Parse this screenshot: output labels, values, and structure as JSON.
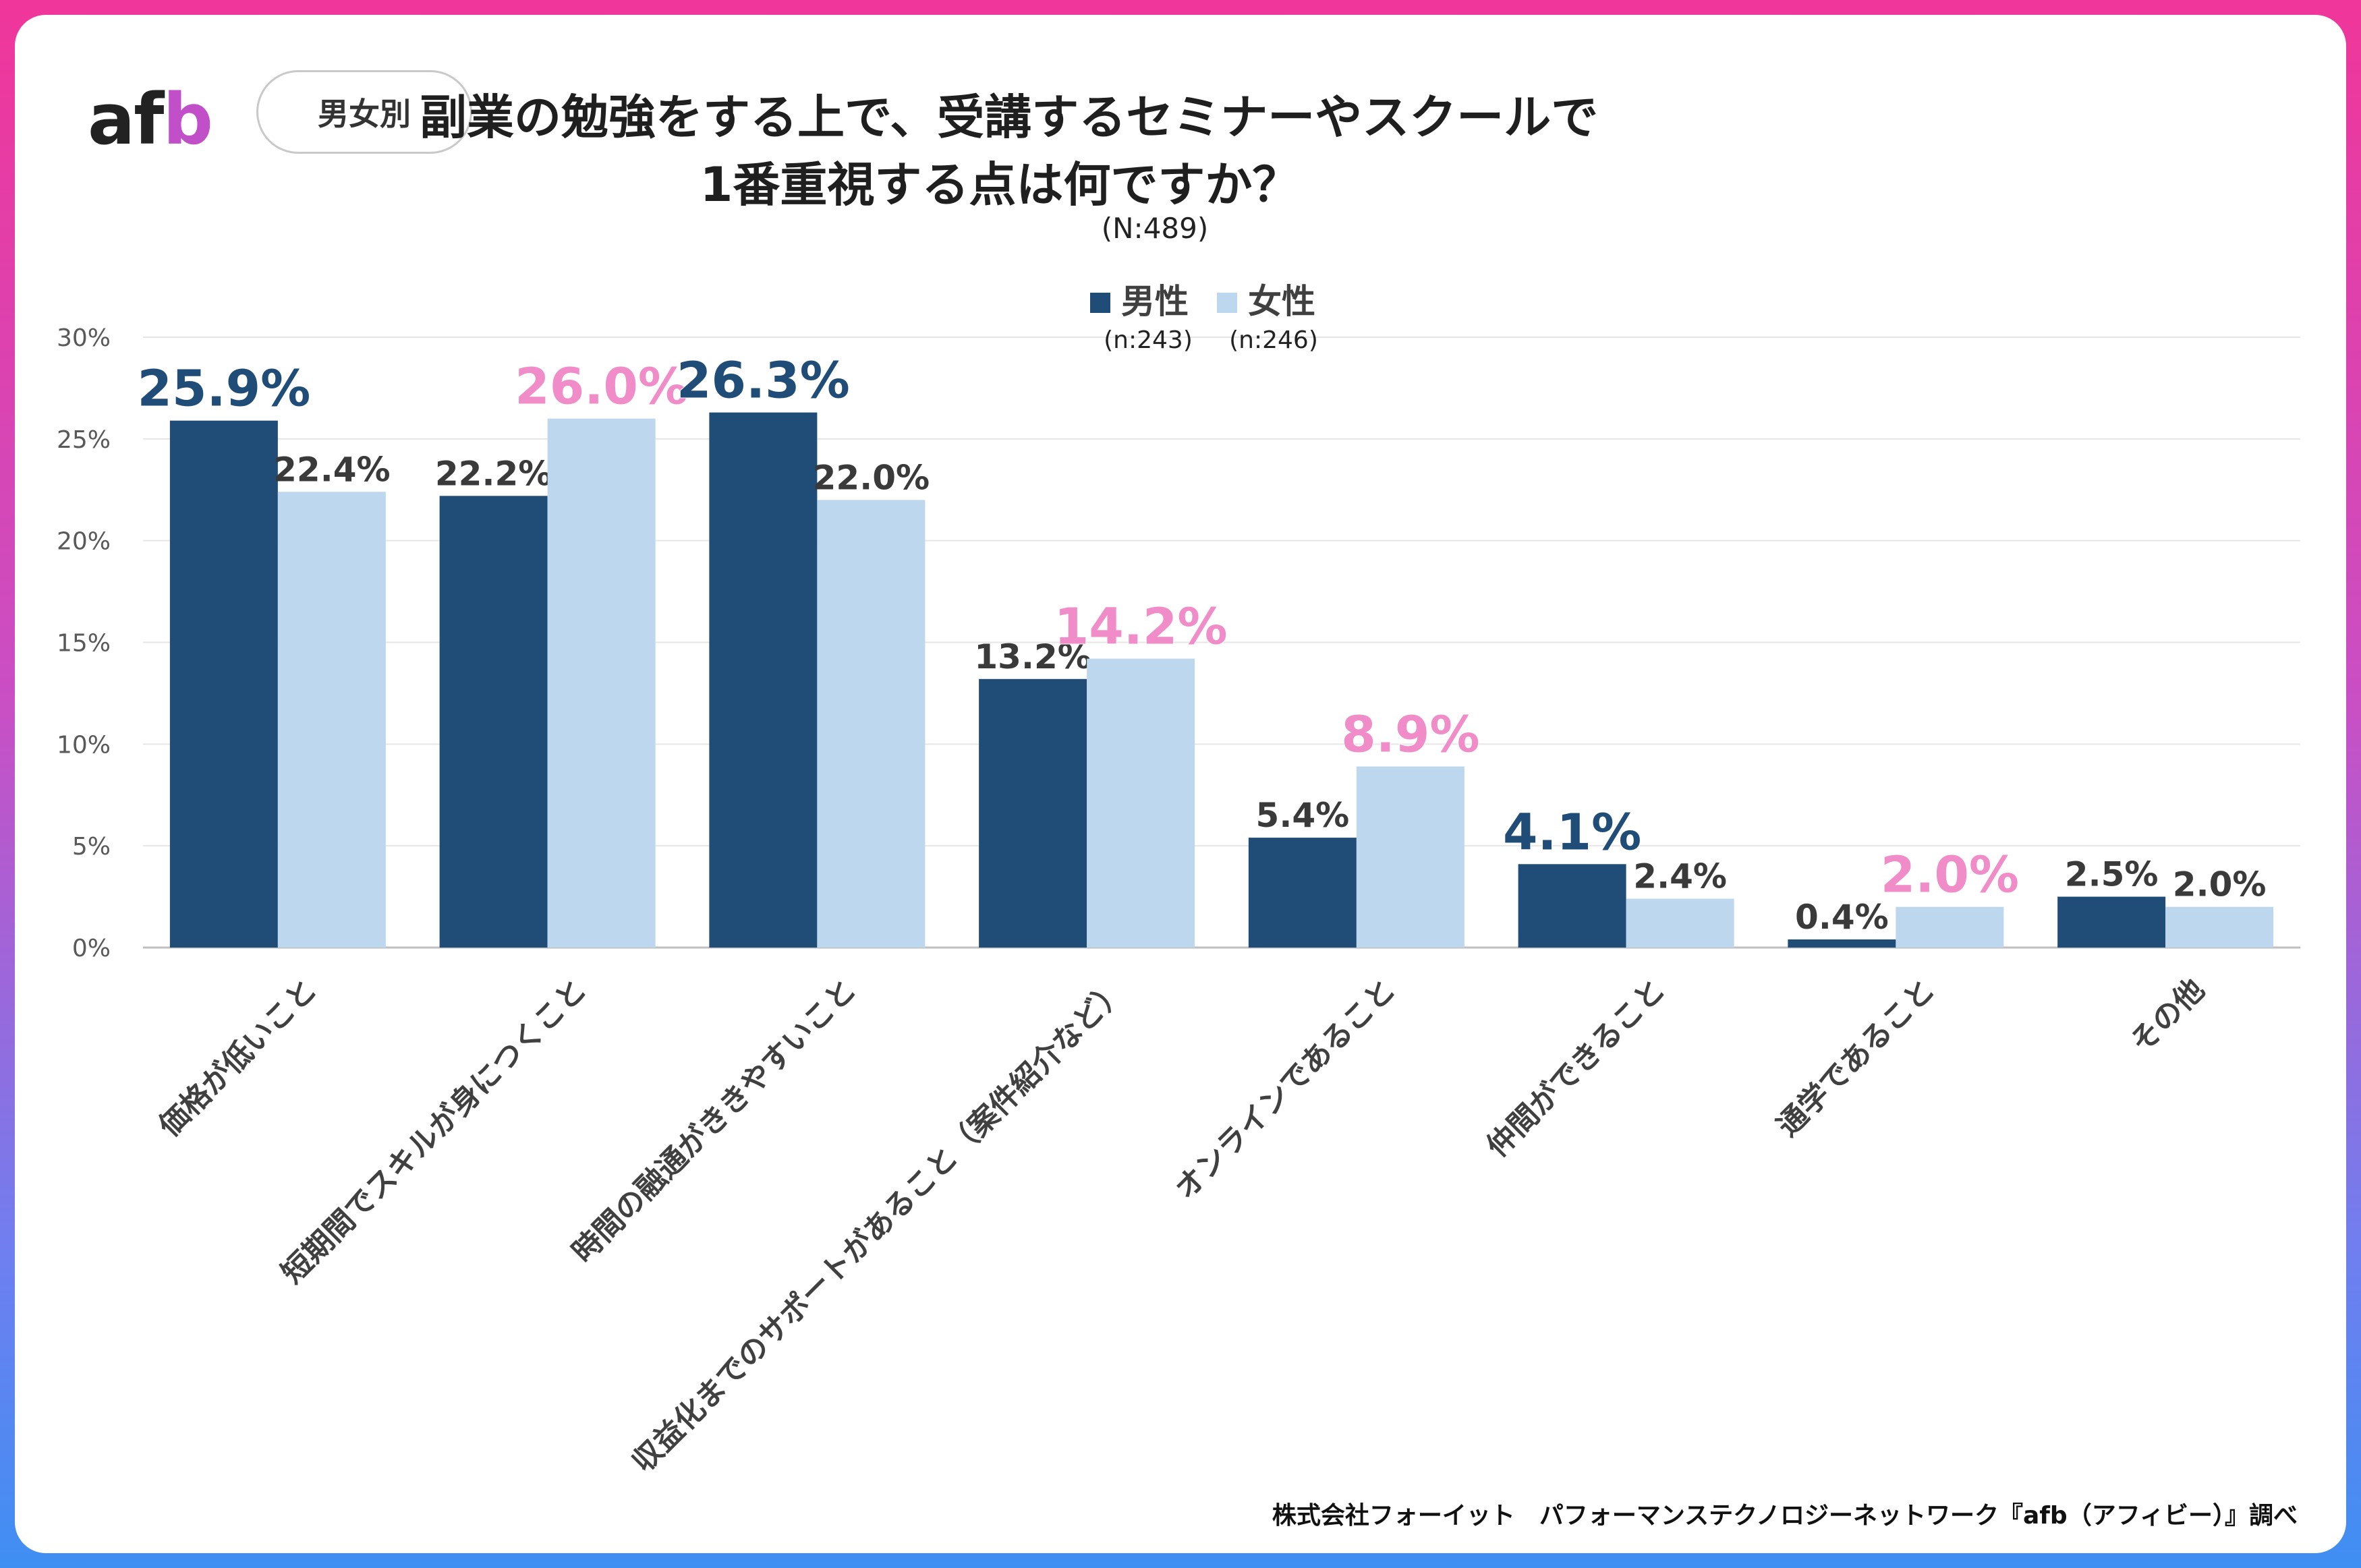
{
  "logo": {
    "text_a": "af",
    "text_b": "b"
  },
  "badge": "男女別",
  "title": {
    "line1": "副業の勉強をする上で、受講するセミナーやスクールで",
    "line2": "1番重視する点は何ですか？"
  },
  "subtitle": "(N:489)",
  "source": "株式会社フォーイット　パフォーマンステクノロジーネットワーク『afb（アフィビー）』調べ",
  "colors": {
    "male": "#204d78",
    "female": "#bdd7ee",
    "highlight": "#f08dc9",
    "label": "#3a3a3a",
    "grid": "#e6e6e6",
    "axis": "#595959"
  },
  "chart_data": {
    "type": "bar",
    "title": "副業の勉強をする上で、受講するセミナーやスクールで1番重視する点は何ですか？",
    "ylim": [
      0,
      30
    ],
    "yticks": [
      "0%",
      "5%",
      "10%",
      "15%",
      "20%",
      "25%",
      "30%"
    ],
    "ytick_values": [
      0,
      5,
      10,
      15,
      20,
      25,
      30
    ],
    "categories": [
      "価格が低いこと",
      "短期間でスキルが身につくこと",
      "時間の融通がききやすいこと",
      "収益化までのサポートがあること（案件紹介など）",
      "オンラインであること",
      "仲間ができること",
      "通学であること",
      "その他"
    ],
    "series": [
      {
        "name": "男性",
        "n": "(n:243)",
        "values": [
          25.9,
          22.2,
          26.3,
          13.2,
          5.4,
          4.1,
          0.4,
          2.5
        ],
        "labels": [
          "25.9%",
          "22.2%",
          "26.3%",
          "13.2%",
          "5.4%",
          "4.1%",
          "0.4%",
          "2.5%"
        ],
        "highlight": [
          true,
          false,
          true,
          false,
          false,
          true,
          false,
          false
        ]
      },
      {
        "name": "女性",
        "n": "(n:246)",
        "values": [
          22.4,
          26.0,
          22.0,
          14.2,
          8.9,
          2.4,
          2.0,
          2.0
        ],
        "labels": [
          "22.4%",
          "26.0%",
          "22.0%",
          "14.2%",
          "8.9%",
          "2.4%",
          "2.0%",
          "2.0%"
        ],
        "highlight": [
          false,
          true,
          false,
          true,
          true,
          false,
          true,
          false
        ]
      }
    ],
    "legend_position": "top-center",
    "grid": true
  }
}
